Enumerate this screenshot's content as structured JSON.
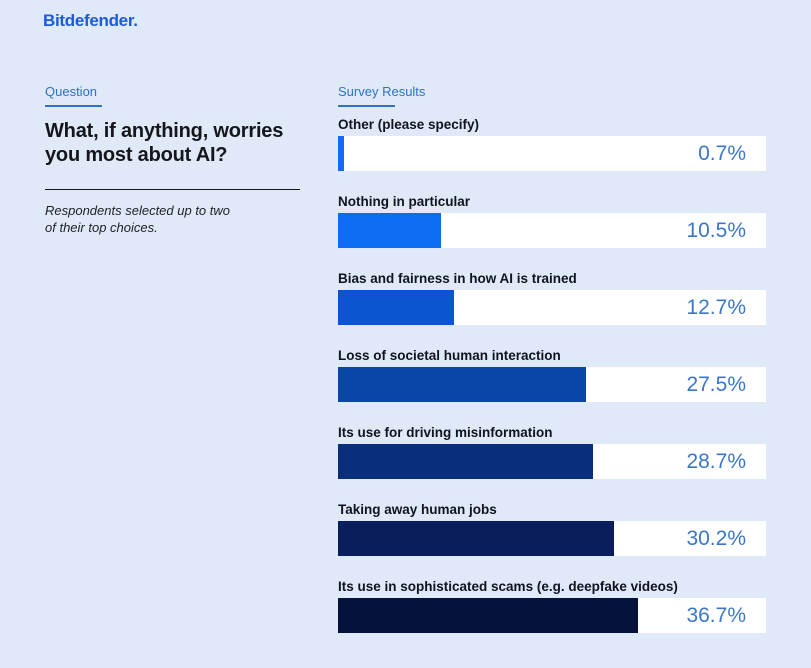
{
  "page": {
    "background_color": "#dfe9f8"
  },
  "header": {
    "logo_text": "Bitdefender."
  },
  "question_panel": {
    "section_label": "Question",
    "title": "What, if anything, worries you most about AI?",
    "note_lines": [
      "Respondents selected up to two",
      "of their top choices."
    ]
  },
  "results_panel": {
    "section_label": "Survey Results"
  },
  "chart_data": {
    "type": "bar",
    "orientation": "horizontal",
    "title": "What, if anything, worries you most about AI?",
    "categories": [
      "Other (please specify)",
      "Nothing in particular",
      "Bias and fairness in how AI is trained",
      "Loss of societal human interaction",
      "Its use for driving misinformation",
      "Taking away human jobs",
      "Its use in sophisticated scams (e.g. deepfake videos)"
    ],
    "values": [
      0.7,
      10.5,
      12.7,
      27.5,
      28.7,
      30.2,
      36.7
    ],
    "value_labels": [
      "0.7%",
      "10.5%",
      "12.7%",
      "27.5%",
      "28.7%",
      "30.2%",
      "36.7%"
    ],
    "bar_colors": [
      "#0d6ef3",
      "#0c6cf2",
      "#0b55d0",
      "#0a46a8",
      "#092e7b",
      "#0a1d5c",
      "#05123c"
    ],
    "fill_percent_of_track": [
      1.4,
      24.0,
      27.1,
      57.9,
      59.6,
      64.5,
      70.1
    ],
    "track_color": "#ffffff",
    "value_text_color": "#3c76cb",
    "xlabel": "",
    "ylabel": "",
    "grid": false,
    "legend": "none",
    "value_label_position": "inside-right"
  }
}
